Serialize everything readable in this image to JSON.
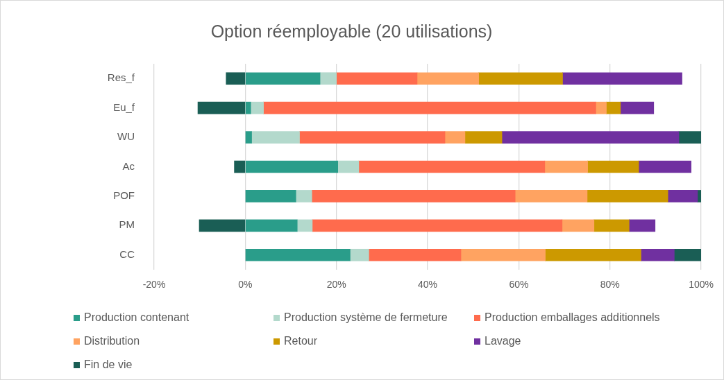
{
  "chart_data": {
    "type": "bar",
    "orientation": "horizontal",
    "stacked": true,
    "title": "Option réemployable (20 utilisations)",
    "categories": [
      "Res_f",
      "Eu_f",
      "WU",
      "Ac",
      "POF",
      "PM",
      "CC"
    ],
    "series": [
      {
        "name": "Production contenant",
        "color": "#2a9d8a",
        "values": [
          16.4,
          1.2,
          1.4,
          20.3,
          11.1,
          11.4,
          23.0
        ]
      },
      {
        "name": "Production système de fermeture",
        "color": "#b3d9cc",
        "values": [
          3.6,
          2.8,
          10.5,
          4.6,
          3.5,
          3.3,
          4.1
        ]
      },
      {
        "name": "Production emballages additionnels",
        "color": "#ff6b4d",
        "values": [
          17.7,
          72.9,
          31.9,
          40.8,
          44.6,
          54.8,
          20.2
        ]
      },
      {
        "name": "Distribution",
        "color": "#ffa361",
        "values": [
          13.5,
          2.3,
          4.4,
          9.4,
          15.8,
          7.0,
          18.5
        ]
      },
      {
        "name": "Retour",
        "color": "#cc9900",
        "values": [
          18.4,
          3.1,
          8.1,
          11.2,
          17.7,
          7.7,
          21.0
        ]
      },
      {
        "name": "Lavage",
        "color": "#7030a0",
        "values": [
          26.2,
          7.3,
          38.8,
          11.5,
          6.5,
          5.7,
          7.3
        ]
      },
      {
        "name": "Fin de vie",
        "color": "#1a5e55",
        "values": [
          -4.2,
          -10.4,
          4.9,
          -2.4,
          0.8,
          -10.1,
          5.9
        ]
      }
    ],
    "xlim": [
      -20,
      100
    ],
    "xticks": [
      {
        "value": -20,
        "label": "-20%"
      },
      {
        "value": 0,
        "label": "0%"
      },
      {
        "value": 20,
        "label": "20%"
      },
      {
        "value": 40,
        "label": "40%"
      },
      {
        "value": 60,
        "label": "60%"
      },
      {
        "value": 80,
        "label": "80%"
      },
      {
        "value": 100,
        "label": "100%"
      }
    ],
    "grid": "x",
    "legend": "bottom"
  }
}
